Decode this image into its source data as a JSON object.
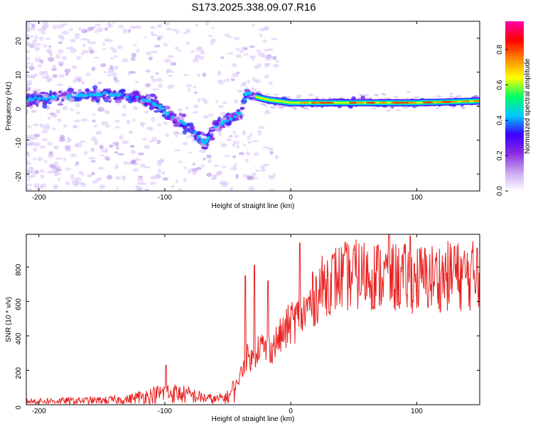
{
  "title": "S173.2025.338.09.07.R16",
  "chart_data": [
    {
      "type": "heatmap",
      "panel": "spectrogram",
      "xlabel": "Height of straight line (km)",
      "ylabel": "Frequency (Hz)",
      "xlim": [
        -210,
        150
      ],
      "ylim": [
        -25,
        25
      ],
      "xticks": [
        -200,
        -100,
        0,
        100
      ],
      "yticks": [
        -20,
        -10,
        0,
        10,
        20
      ],
      "colorbar": {
        "label": "Normalized spectral amplitude",
        "range": [
          0.0,
          0.96
        ],
        "ticks": [
          0.0,
          0.2,
          0.4,
          0.6,
          0.8
        ],
        "tick_labels": [
          "0.0",
          "0.2",
          "0.4",
          "0.6",
          "0.8"
        ],
        "colors": [
          "#ffffff",
          "#c9a6f0",
          "#8a2be2",
          "#3a00ff",
          "#00c8ff",
          "#00ff66",
          "#ffff00",
          "#ff8800",
          "#ff0000",
          "#ff00aa"
        ]
      },
      "ridge": {
        "description": "dominant frequency track vs height",
        "x": [
          -210,
          -190,
          -170,
          -150,
          -130,
          -115,
          -105,
          -95,
          -85,
          -75,
          -68,
          -60,
          -50,
          -40,
          -35,
          -30,
          -20,
          -10,
          0,
          20,
          60,
          100,
          150
        ],
        "y": [
          2,
          2.5,
          3,
          3.5,
          3,
          2,
          0,
          -3,
          -5,
          -8,
          -11,
          -6,
          -4,
          -2,
          4,
          3,
          2,
          1.5,
          1,
          1,
          1,
          1,
          1.5
        ]
      }
    },
    {
      "type": "line",
      "panel": "snr",
      "xlabel": "Height of straight line (km)",
      "ylabel": "SNR (10 * v/v)",
      "xlim": [
        -210,
        150
      ],
      "ylim": [
        0,
        990
      ],
      "xticks": [
        -200,
        -100,
        0,
        100
      ],
      "yticks": [
        0,
        200,
        400,
        600,
        800
      ],
      "color": "#e8201f",
      "series": [
        {
          "name": "SNR",
          "x": [
            -210,
            -180,
            -150,
            -130,
            -120,
            -110,
            -100,
            -90,
            -80,
            -70,
            -60,
            -50,
            -45,
            -40,
            -35,
            -30,
            -25,
            -20,
            -15,
            -10,
            -5,
            0,
            10,
            20,
            30,
            40,
            60,
            80,
            100,
            120,
            150
          ],
          "y": [
            20,
            22,
            25,
            30,
            45,
            55,
            70,
            65,
            55,
            40,
            30,
            45,
            90,
            170,
            280,
            260,
            350,
            320,
            330,
            380,
            420,
            480,
            520,
            640,
            720,
            740,
            760,
            740,
            730,
            745,
            750
          ],
          "spikes": [
            {
              "x": -99,
              "y": 230
            },
            {
              "x": -36,
              "y": 750
            },
            {
              "x": -29,
              "y": 810
            },
            {
              "x": -18,
              "y": 720
            },
            {
              "x": 7,
              "y": 940
            },
            {
              "x": 50,
              "y": 900
            },
            {
              "x": 78,
              "y": 990
            },
            {
              "x": 95,
              "y": 980
            },
            {
              "x": 130,
              "y": 920
            },
            {
              "x": 148,
              "y": 910
            }
          ]
        }
      ]
    }
  ]
}
